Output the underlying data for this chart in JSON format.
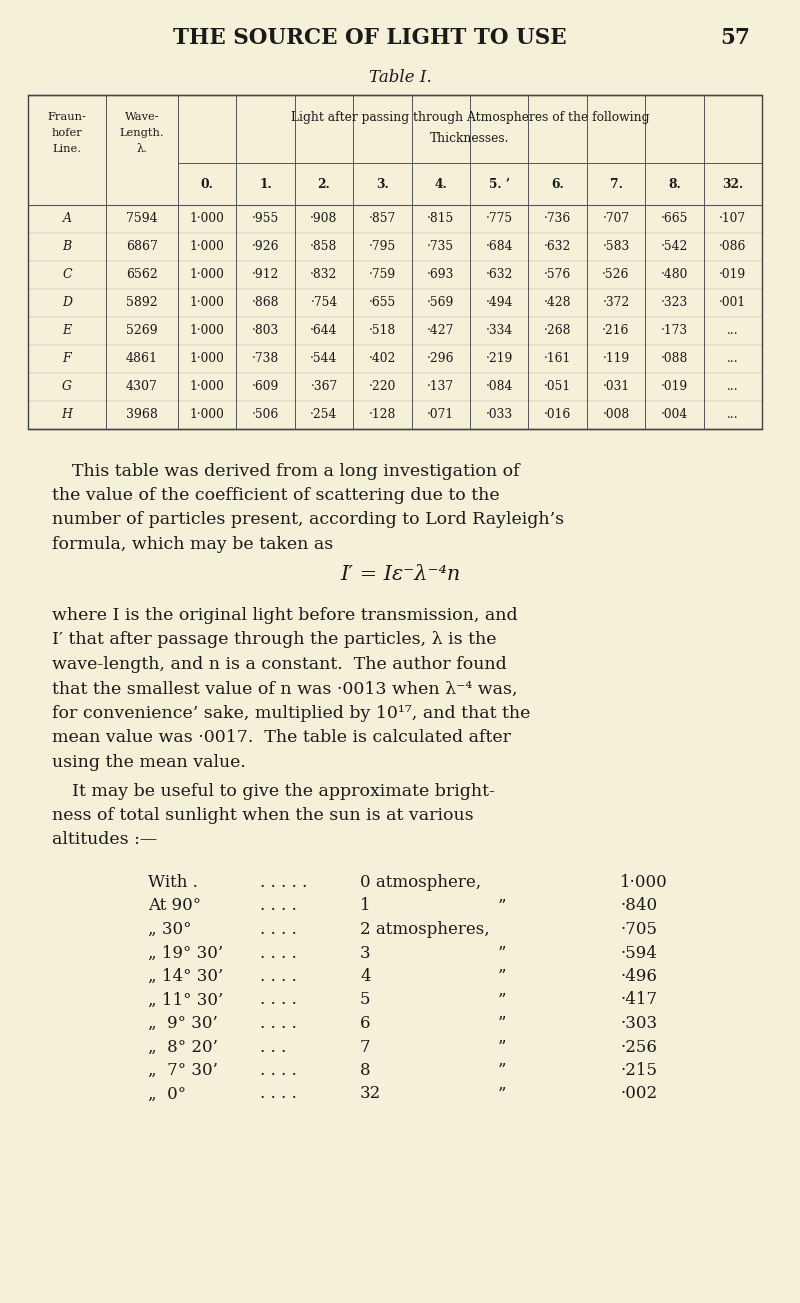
{
  "page_title": "THE SOURCE OF LIGHT TO USE",
  "page_number": "57",
  "table_title": "Table I.",
  "bg_color": "#f5f0d8",
  "col_headers": [
    "0.",
    "1.",
    "2.",
    "3.",
    "4.",
    "5. ’",
    "6.",
    "7.",
    "8.",
    "32."
  ],
  "table_data": [
    [
      "A",
      "7594",
      "1·000",
      "·955",
      "·908",
      "·857",
      "·815",
      "·775",
      "·736",
      "·707",
      "·665",
      "·107"
    ],
    [
      "B",
      "6867",
      "1·000",
      "·926",
      "·858",
      "·795",
      "·735",
      "·684",
      "·632",
      "·583",
      "·542",
      "·086"
    ],
    [
      "C",
      "6562",
      "1·000",
      "·912",
      "·832",
      "·759",
      "·693",
      "·632",
      "·576",
      "·526",
      "·480",
      "·019"
    ],
    [
      "D",
      "5892",
      "1·000",
      "·868",
      "·754",
      "·655",
      "·569",
      "·494",
      "·428",
      "·372",
      "·323",
      "·001"
    ],
    [
      "E",
      "5269",
      "1·000",
      "·803",
      "·644",
      "·518",
      "·427",
      "·334",
      "·268",
      "·216",
      "·173",
      "..."
    ],
    [
      "F",
      "4861",
      "1·000",
      "·738",
      "·544",
      "·402",
      "·296",
      "·219",
      "·161",
      "·119",
      "·088",
      "..."
    ],
    [
      "G",
      "4307",
      "1·000",
      "·609",
      "·367",
      "·220",
      "·137",
      "·084",
      "·051",
      "·031",
      "·019",
      "..."
    ],
    [
      "H",
      "3968",
      "1·000",
      "·506",
      "·254",
      "·128",
      "·071",
      "·033",
      "·016",
      "·008",
      "·004",
      "..."
    ]
  ],
  "para1_lines": [
    "This table was derived from a long investigation of",
    "the value of the coefficient of scattering due to the",
    "number of particles present, according to Lord Rayleigh’s",
    "formula, which may be taken as"
  ],
  "formula_line": "I′ = Iε⁻λ⁻⁴n",
  "para2_lines": [
    "where I is the original light before transmission, and",
    "I′ that after passage through the particles, λ is the",
    "wave-length, and n is a constant.  The author found",
    "that the smallest value of n was ·0013 when λ⁻⁴ was,",
    "for convenience’ sake, multiplied by 10¹⁷, and that the",
    "mean value was ·0017.  The table is calculated after",
    "using the mean value."
  ],
  "para3_lines": [
    "It may be useful to give the approximate bright-",
    "ness of total sunlight when the sun is at various",
    "altitudes :—"
  ],
  "sun_col1": [
    "With .",
    "At 90°",
    "„ 30°",
    "„ 19° 30’",
    "„ 14° 30’",
    "„ 11° 30’",
    "„  9° 30’",
    "„  8° 20’",
    "„  7° 30’",
    "„  0°"
  ],
  "sun_dots": [
    ". . . . .",
    ". . . .",
    ". . . .",
    ". . . .",
    ". . . .",
    ". . . .",
    ". . . .",
    ". . .",
    ". . . .",
    ". . . ."
  ],
  "sun_col2": [
    "0 atmosphere,",
    "1",
    "2 atmospheres,",
    "3",
    "4",
    "5",
    "6",
    "7",
    "8",
    "32"
  ],
  "sun_col2b": [
    "",
    "”",
    "",
    "”",
    "”",
    "”",
    "”",
    "”",
    "”",
    "”"
  ],
  "sun_col3": [
    "1·000",
    "·840",
    "·705",
    "·594",
    "·496",
    "·417",
    "·303",
    "·256",
    "·215",
    "·002"
  ]
}
